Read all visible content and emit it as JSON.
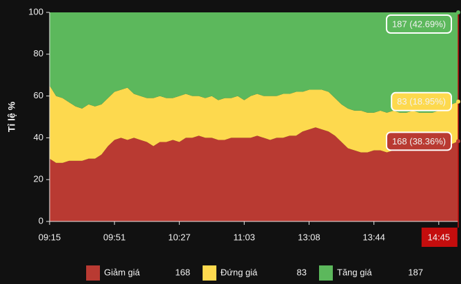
{
  "chart_data": {
    "type": "stacked_area",
    "y_label": "Tỉ lệ %",
    "ylim": [
      0,
      100
    ],
    "yticks": [
      0,
      20,
      40,
      60,
      80,
      100
    ],
    "categories": [
      "09:15",
      null,
      null,
      null,
      null,
      null,
      null,
      null,
      null,
      null,
      "09:51",
      null,
      null,
      null,
      null,
      null,
      null,
      null,
      null,
      null,
      "10:27",
      null,
      null,
      null,
      null,
      null,
      null,
      null,
      null,
      null,
      "11:03",
      null,
      null,
      null,
      null,
      null,
      null,
      null,
      null,
      null,
      "13:08",
      null,
      null,
      null,
      null,
      null,
      null,
      null,
      null,
      null,
      "13:44",
      null,
      null,
      null,
      null,
      null,
      null,
      null,
      null,
      null,
      "14:45",
      null,
      null,
      null
    ],
    "series": [
      {
        "name": "Giảm giá",
        "total": 168,
        "color": "#b93a32",
        "values": [
          30,
          28,
          28,
          29,
          29,
          29,
          30,
          30,
          32,
          36,
          39,
          40,
          39,
          40,
          39,
          38,
          36,
          38,
          38,
          39,
          38,
          40,
          40,
          41,
          40,
          40,
          39,
          39,
          40,
          40,
          40,
          40,
          41,
          40,
          39,
          40,
          40,
          41,
          41,
          43,
          44,
          45,
          44,
          43,
          41,
          38,
          35,
          34,
          33,
          33,
          34,
          34,
          33,
          34,
          35,
          34,
          35,
          34,
          35,
          36,
          37,
          36,
          37,
          38.36
        ],
        "value_labels": [
          null,
          null,
          null,
          null,
          null,
          null,
          null,
          null,
          null,
          null,
          null,
          null,
          null,
          null,
          null,
          null,
          null,
          null,
          null,
          null,
          null,
          null,
          null,
          null,
          null,
          null,
          null,
          null,
          null,
          null,
          null,
          null,
          null,
          null,
          null,
          null,
          null,
          null,
          null,
          null,
          null,
          null,
          null,
          null,
          null,
          null,
          null,
          null,
          null,
          null,
          null,
          null,
          null,
          null,
          null,
          null,
          null,
          null,
          null,
          null,
          null,
          null,
          null,
          "168 (38.36%)"
        ]
      },
      {
        "name": "Đứng giá",
        "total": 83,
        "color": "#fdd94e",
        "values": [
          35,
          32,
          31,
          28,
          26,
          25,
          26,
          25,
          24,
          23,
          23,
          23,
          25,
          21,
          21,
          21,
          23,
          22,
          21,
          20,
          22,
          21,
          20,
          19,
          19,
          20,
          19,
          20,
          19,
          20,
          18,
          20,
          20,
          20,
          21,
          20,
          21,
          20,
          21,
          19,
          19,
          18,
          19,
          19,
          18,
          18,
          19,
          19,
          20,
          19,
          18,
          19,
          19,
          19,
          17,
          18,
          18,
          18,
          17,
          16,
          16,
          18,
          19,
          18.95
        ],
        "value_labels": [
          null,
          null,
          null,
          null,
          null,
          null,
          null,
          null,
          null,
          null,
          null,
          null,
          null,
          null,
          null,
          null,
          null,
          null,
          null,
          null,
          null,
          null,
          null,
          null,
          null,
          null,
          null,
          null,
          null,
          null,
          null,
          null,
          null,
          null,
          null,
          null,
          null,
          null,
          null,
          null,
          null,
          null,
          null,
          null,
          null,
          null,
          null,
          null,
          null,
          null,
          null,
          null,
          null,
          null,
          null,
          null,
          null,
          null,
          null,
          null,
          null,
          null,
          null,
          "83 (18.95%)"
        ]
      },
      {
        "name": "Tăng giá",
        "total": 187,
        "color": "#5cb85c",
        "values": [
          35,
          40,
          41,
          43,
          45,
          46,
          44,
          45,
          44,
          41,
          38,
          37,
          36,
          39,
          40,
          41,
          41,
          40,
          41,
          41,
          40,
          39,
          40,
          40,
          41,
          40,
          42,
          41,
          41,
          40,
          42,
          40,
          39,
          40,
          40,
          40,
          39,
          39,
          38,
          38,
          37,
          37,
          37,
          38,
          41,
          44,
          46,
          47,
          47,
          48,
          48,
          47,
          48,
          47,
          48,
          48,
          47,
          48,
          48,
          48,
          47,
          46,
          44,
          42.69
        ],
        "value_labels": [
          null,
          null,
          null,
          null,
          null,
          null,
          null,
          null,
          null,
          null,
          null,
          null,
          null,
          null,
          null,
          null,
          null,
          null,
          null,
          null,
          null,
          null,
          null,
          null,
          null,
          null,
          null,
          null,
          null,
          null,
          null,
          null,
          null,
          null,
          null,
          null,
          null,
          null,
          null,
          null,
          null,
          null,
          null,
          null,
          null,
          null,
          null,
          null,
          null,
          null,
          null,
          null,
          null,
          null,
          null,
          null,
          null,
          null,
          null,
          null,
          null,
          null,
          null,
          "187 (42.69%)"
        ]
      }
    ]
  }
}
